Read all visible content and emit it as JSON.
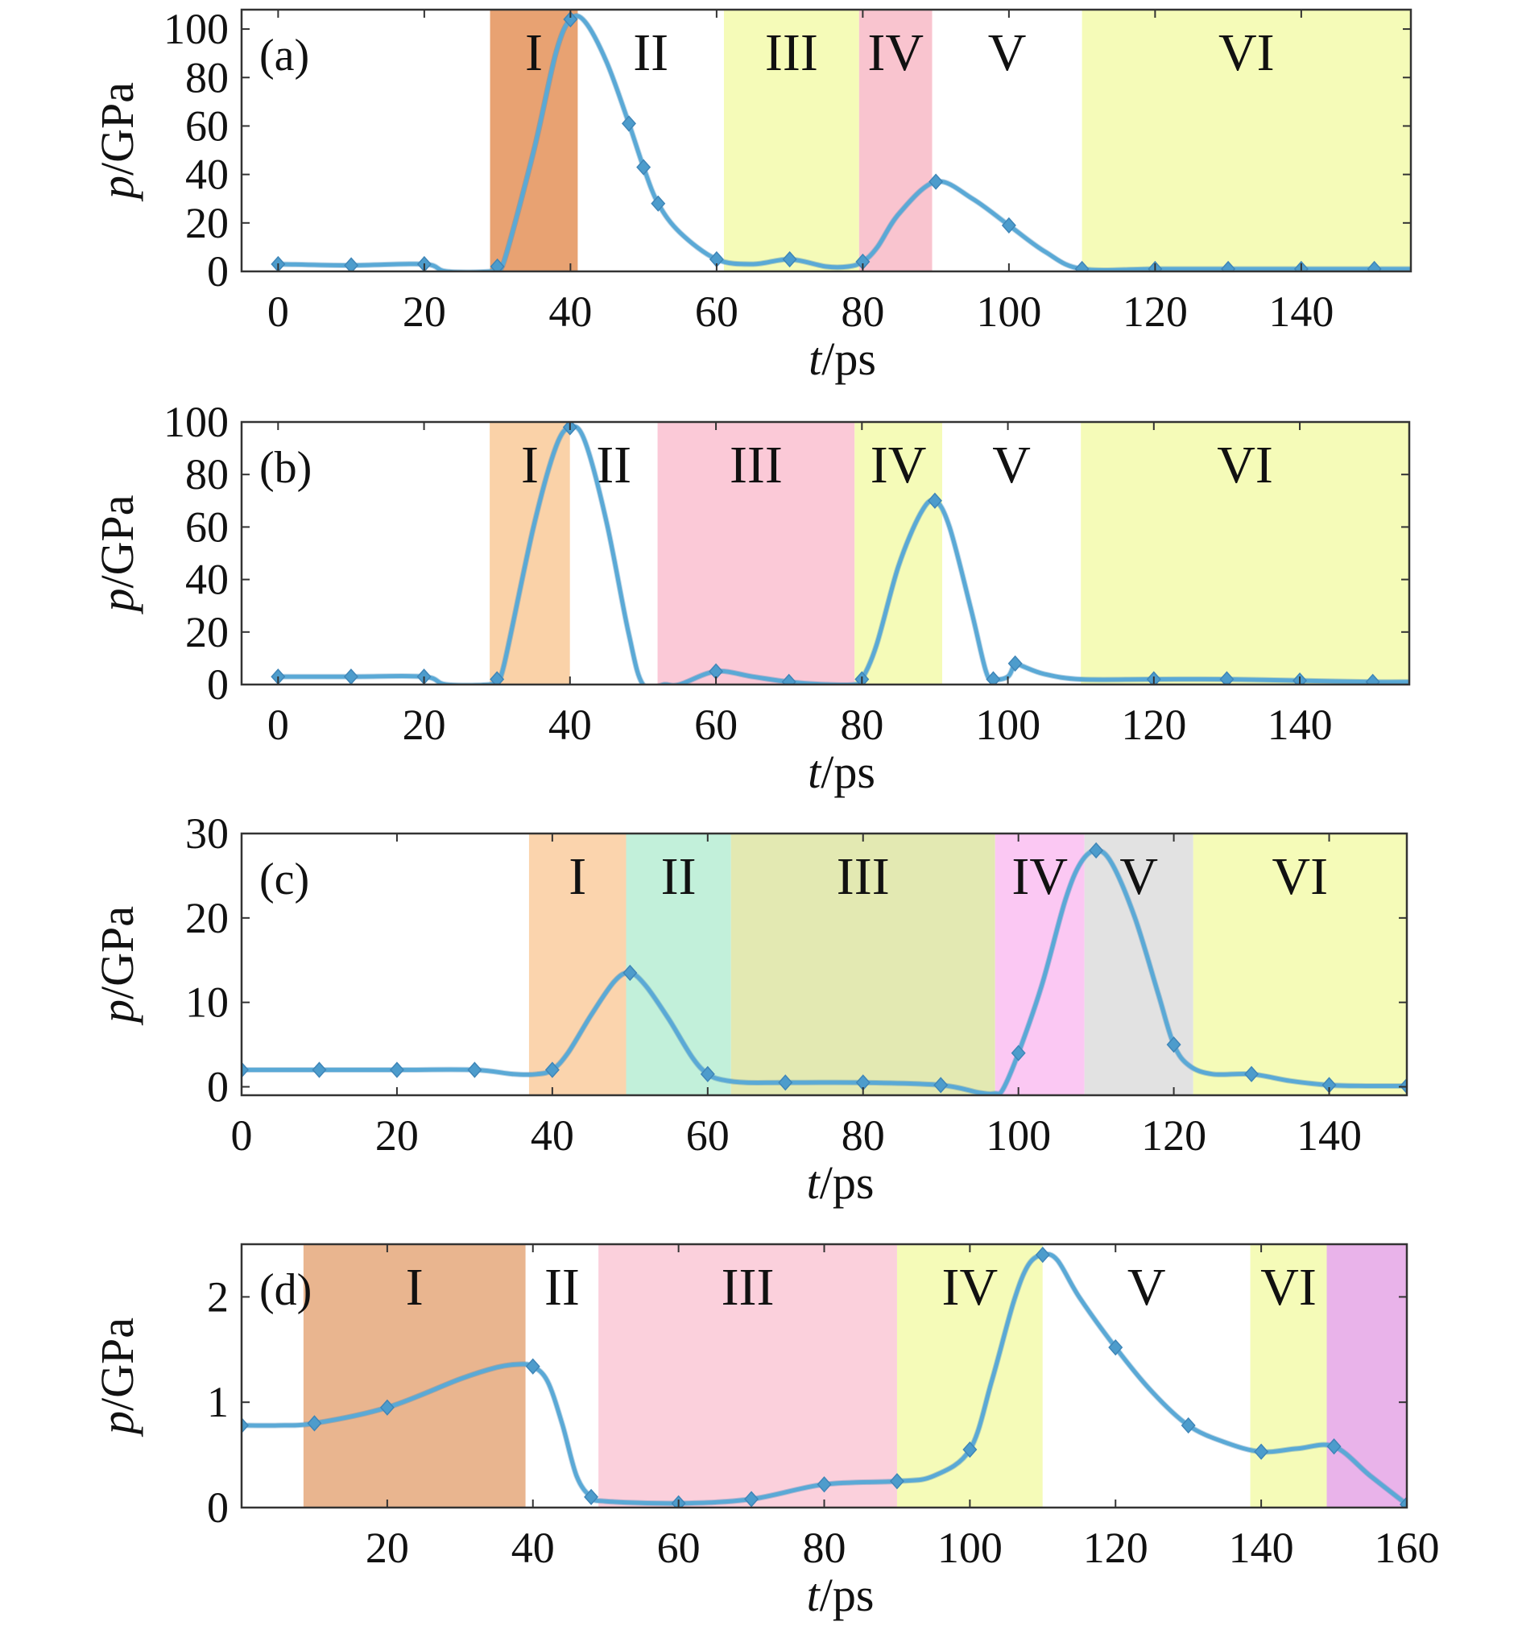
{
  "chart_data": [
    {
      "type": "line",
      "panel_label": "(a)",
      "xlabel": "t/ps",
      "ylabel": "p/GPa",
      "xlim": [
        -5,
        155
      ],
      "ylim": [
        0,
        108
      ],
      "xticks": [
        0,
        20,
        40,
        60,
        80,
        100,
        120,
        140
      ],
      "yticks": [
        0,
        20,
        40,
        60,
        80,
        100
      ],
      "line_color": "#5aa9d6",
      "regions": [
        {
          "label": "I",
          "start": 29,
          "end": 41,
          "color": "#e8a272"
        },
        {
          "label": "II",
          "start": 41,
          "end": 61,
          "color": "#ffffff"
        },
        {
          "label": "III",
          "start": 61,
          "end": 79.5,
          "color": "#f5fbb8"
        },
        {
          "label": "IV",
          "start": 79.5,
          "end": 89.5,
          "color": "#f9c4cf"
        },
        {
          "label": "V",
          "start": 89.5,
          "end": 110,
          "color": "#ffffff"
        },
        {
          "label": "VI",
          "start": 110,
          "end": 155,
          "color": "#f5fbb8"
        }
      ],
      "series": [
        {
          "x": [
            0,
            10,
            20,
            23,
            29,
            30,
            31,
            35,
            38,
            40,
            42,
            45,
            48,
            50,
            52,
            55,
            60,
            65,
            70,
            75,
            78,
            80,
            82,
            85,
            90,
            95,
            100,
            105,
            110,
            120,
            130,
            140,
            150,
            155
          ],
          "y": [
            3,
            2.5,
            3,
            0,
            0,
            2,
            5,
            50,
            90,
            104,
            103,
            86,
            61,
            43,
            28,
            16,
            5,
            3,
            5,
            2,
            2,
            4,
            10,
            24,
            37,
            30,
            19,
            8,
            1,
            1,
            1,
            1,
            1,
            1
          ],
          "markers": [
            0,
            10,
            20,
            30,
            40,
            48,
            50,
            52,
            60,
            70,
            80,
            90,
            100,
            110,
            120,
            130,
            140,
            150
          ]
        }
      ]
    },
    {
      "type": "line",
      "panel_label": "(b)",
      "xlabel": "t/ps",
      "ylabel": "p/GPa",
      "xlim": [
        -5,
        155
      ],
      "ylim": [
        0,
        100
      ],
      "xticks": [
        0,
        20,
        40,
        60,
        80,
        100,
        120,
        140
      ],
      "yticks": [
        0,
        20,
        40,
        60,
        80,
        100
      ],
      "line_color": "#5aa9d6",
      "regions": [
        {
          "label": "I",
          "start": 29,
          "end": 40,
          "color": "#fad2a8"
        },
        {
          "label": "II",
          "start": 40,
          "end": 52,
          "color": "#ffffff"
        },
        {
          "label": "III",
          "start": 52,
          "end": 79,
          "color": "#fbc9d7"
        },
        {
          "label": "IV",
          "start": 79,
          "end": 91,
          "color": "#f5fbb8"
        },
        {
          "label": "V",
          "start": 91,
          "end": 110,
          "color": "#ffffff"
        },
        {
          "label": "VI",
          "start": 110,
          "end": 155,
          "color": "#f5fbb8"
        }
      ],
      "series": [
        {
          "x": [
            0,
            10,
            20,
            23,
            29,
            30,
            31,
            35,
            38,
            40,
            42,
            45,
            48,
            50,
            53,
            55,
            60,
            65,
            70,
            75,
            79,
            80,
            82,
            85,
            88,
            90,
            92,
            95,
            97,
            98,
            100,
            101,
            102,
            105,
            110,
            120,
            130,
            140,
            150,
            155
          ],
          "y": [
            3,
            3,
            3,
            0,
            0,
            2,
            8,
            60,
            90,
            98,
            93,
            62,
            20,
            0,
            0,
            0,
            5,
            3,
            1,
            0,
            0,
            2,
            15,
            45,
            65,
            70,
            60,
            28,
            5,
            2,
            3,
            8,
            7,
            4,
            2,
            2,
            2,
            1.5,
            1,
            1
          ],
          "markers": [
            0,
            10,
            20,
            30,
            40,
            60,
            70,
            80,
            90,
            98,
            101,
            120,
            130,
            140,
            150
          ]
        }
      ]
    },
    {
      "type": "line",
      "panel_label": "(c)",
      "xlabel": "t/ps",
      "ylabel": "p/GPa",
      "xlim": [
        0,
        150
      ],
      "ylim": [
        -1,
        30
      ],
      "xticks": [
        0,
        20,
        40,
        60,
        80,
        100,
        120,
        140
      ],
      "yticks": [
        0,
        10,
        20,
        30
      ],
      "line_color": "#5aa9d6",
      "regions": [
        {
          "label": "I",
          "start": 37,
          "end": 49.5,
          "color": "#fbd4ad"
        },
        {
          "label": "II",
          "start": 49.5,
          "end": 63,
          "color": "#c2f0da"
        },
        {
          "label": "III",
          "start": 63,
          "end": 97,
          "color": "#e3e9b2"
        },
        {
          "label": "IV",
          "start": 97,
          "end": 108.5,
          "color": "#fbc8f3"
        },
        {
          "label": "V",
          "start": 108.5,
          "end": 122.5,
          "color": "#e2e2e2"
        },
        {
          "label": "VI",
          "start": 122.5,
          "end": 150,
          "color": "#f5fbb8"
        }
      ],
      "series": [
        {
          "x": [
            0,
            10,
            20,
            30,
            35,
            38,
            40,
            42,
            45,
            48,
            50,
            52,
            55,
            58,
            60,
            62,
            65,
            70,
            80,
            90,
            95,
            97,
            98,
            100,
            103,
            106,
            108,
            110,
            112,
            115,
            118,
            120,
            122,
            125,
            130,
            135,
            140,
            145,
            150
          ],
          "y": [
            2,
            2,
            2,
            2,
            1.5,
            1.5,
            2,
            4,
            8.5,
            12.5,
            13.5,
            12,
            8,
            3.5,
            1.5,
            0.8,
            0.5,
            0.5,
            0.5,
            0.2,
            -0.7,
            -0.8,
            -0.3,
            4,
            12,
            22,
            26.5,
            28,
            26.5,
            20,
            11,
            5,
            2.5,
            1.5,
            1.5,
            0.7,
            0.2,
            0.1,
            0.1
          ],
          "markers": [
            0,
            10,
            20,
            30,
            40,
            50,
            60,
            70,
            80,
            90,
            100,
            110,
            120,
            130,
            140,
            150
          ]
        }
      ]
    },
    {
      "type": "line",
      "panel_label": "(d)",
      "xlabel": "t/ps",
      "ylabel": "p/GPa",
      "xlim": [
        0,
        160
      ],
      "ylim": [
        0,
        2.5
      ],
      "xticks": [
        20,
        40,
        60,
        80,
        100,
        120,
        140,
        160
      ],
      "yticks": [
        0,
        1,
        2
      ],
      "line_color": "#5aa9d6",
      "regions": [
        {
          "label": "I",
          "start": 8.5,
          "end": 39,
          "color": "#e9b58f"
        },
        {
          "label": "II",
          "start": 39,
          "end": 49,
          "color": "#ffffff"
        },
        {
          "label": "III",
          "start": 49,
          "end": 90,
          "color": "#fbd0dc"
        },
        {
          "label": "IV",
          "start": 90,
          "end": 110,
          "color": "#f5fbb8"
        },
        {
          "label": "V",
          "start": 110,
          "end": 138.5,
          "color": "#ffffff"
        },
        {
          "label": "VI",
          "start": 138.5,
          "end": 149,
          "color": "#f5fbb8"
        },
        {
          "label": "",
          "start": 149,
          "end": 160,
          "color": "#e9b3ea"
        }
      ],
      "series": [
        {
          "x": [
            0,
            5,
            10,
            20,
            30,
            35,
            38,
            40,
            42,
            44,
            46,
            48,
            50,
            60,
            70,
            80,
            90,
            95,
            100,
            103,
            106,
            108,
            110,
            112,
            115,
            120,
            125,
            130,
            135,
            140,
            145,
            150,
            155,
            160
          ],
          "y": [
            0.78,
            0.78,
            0.8,
            0.95,
            1.22,
            1.33,
            1.36,
            1.34,
            1.2,
            0.8,
            0.3,
            0.1,
            0.06,
            0.04,
            0.08,
            0.22,
            0.25,
            0.3,
            0.55,
            1.2,
            1.95,
            2.3,
            2.4,
            2.35,
            2.0,
            1.52,
            1.1,
            0.78,
            0.62,
            0.53,
            0.56,
            0.58,
            0.3,
            0.03
          ],
          "markers": [
            0,
            10,
            20,
            40,
            48,
            60,
            70,
            80,
            90,
            100,
            110,
            120,
            130,
            140,
            150,
            160
          ]
        }
      ]
    }
  ]
}
